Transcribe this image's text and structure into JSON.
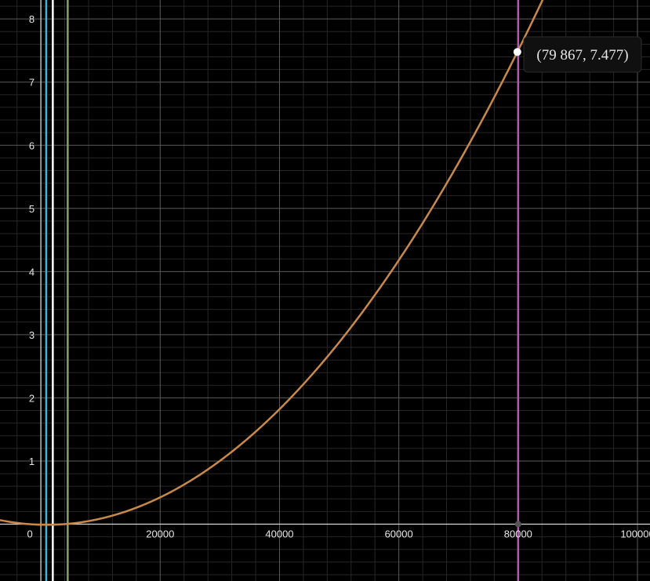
{
  "chart_data": {
    "type": "line",
    "title": "",
    "xlabel": "",
    "ylabel": "",
    "xlim": [
      -6850,
      102100
    ],
    "ylim": [
      -0.9,
      8.3
    ],
    "x_ticks": [
      0,
      20000,
      40000,
      60000,
      80000,
      100000
    ],
    "x_tick_labels": [
      "0",
      "20000",
      "40000",
      "60000",
      "80000",
      "100000"
    ],
    "y_ticks": [
      1,
      2,
      3,
      4,
      5,
      6,
      7,
      8
    ],
    "y_tick_labels": [
      "1",
      "2",
      "3",
      "4",
      "5",
      "6",
      "7",
      "8"
    ],
    "grid": true,
    "background": "#000000",
    "curve": {
      "color": "#c8894a",
      "form": "quadratic",
      "vertex": [
        1000,
        -0.01
      ],
      "through": [
        79867,
        7.477
      ],
      "points": [
        [
          -6850,
          0.06
        ],
        [
          0,
          0.0
        ],
        [
          1000,
          -0.01
        ],
        [
          10000,
          0.11
        ],
        [
          20000,
          0.44
        ],
        [
          30000,
          1.01
        ],
        [
          40000,
          1.83
        ],
        [
          50000,
          2.88
        ],
        [
          60000,
          4.17
        ],
        [
          70000,
          5.73
        ],
        [
          79867,
          7.477
        ],
        [
          85000,
          8.46
        ]
      ]
    },
    "vertical_lines": [
      {
        "x": 900,
        "color": "#45b4d6"
      },
      {
        "x": 2000,
        "color": "#ffffff"
      },
      {
        "x": 4500,
        "color": "#7fa85a"
      },
      {
        "x": 80000,
        "color": "#b45bb0"
      }
    ],
    "highlight": {
      "x": 79867,
      "y": 7.477,
      "label": "(79 867, 7.477)"
    },
    "axis_marker": {
      "x": 80000,
      "color": "#555555"
    }
  }
}
